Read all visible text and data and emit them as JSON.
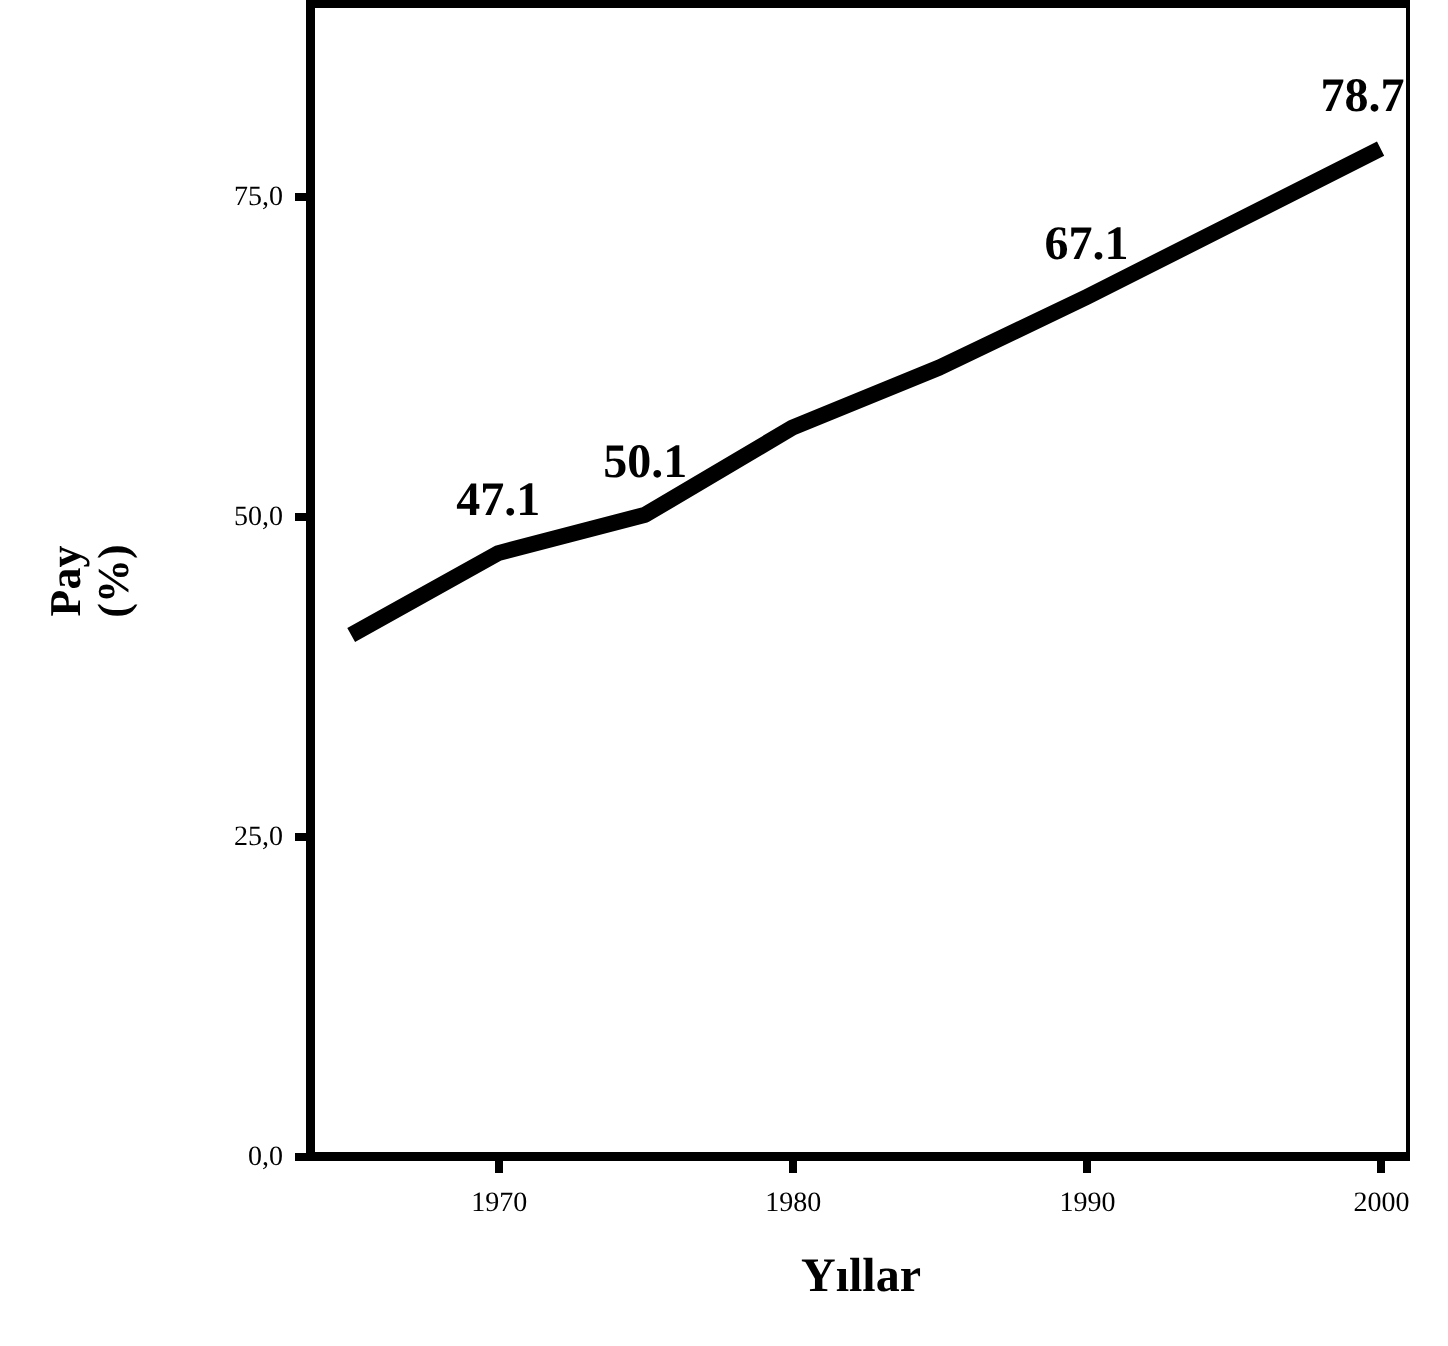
{
  "chart_data": {
    "type": "line",
    "xlabel": "Yıllar",
    "ylabel": "Pay\n(%)",
    "x": [
      1965,
      1970,
      1975,
      1980,
      1985,
      1990,
      1995,
      2000
    ],
    "series": [
      {
        "color": "#000000",
        "values": [
          40.7,
          47.1,
          50.1,
          56.9,
          61.6,
          67.1,
          72.9,
          78.7
        ],
        "value_labels": [
          null,
          "47.1",
          "50.1",
          null,
          null,
          "67.1",
          null,
          "78.7"
        ]
      }
    ],
    "xlim": [
      1963.6,
      2001
    ],
    "xticks": [
      1970,
      1980,
      1990,
      2000
    ],
    "ylim": [
      0,
      90
    ],
    "yticks": [
      {
        "value": 0,
        "label": "0,0"
      },
      {
        "value": 25,
        "label": "25,0"
      },
      {
        "value": 50,
        "label": "50,0"
      },
      {
        "value": 75,
        "label": "75,0"
      }
    ],
    "grid": false,
    "marker": "none",
    "line_style": "solid"
  }
}
